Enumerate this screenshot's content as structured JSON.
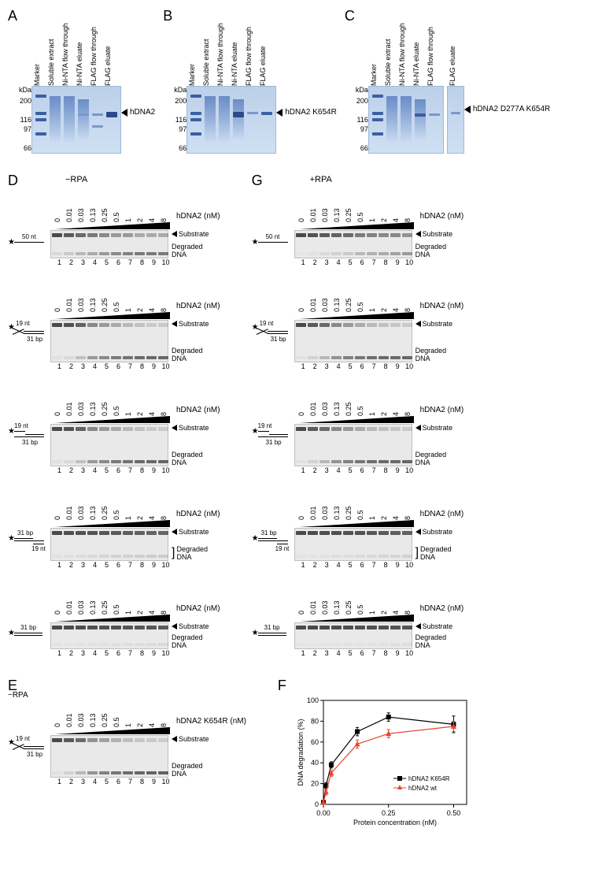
{
  "gel_lane_labels": [
    "Marker",
    "Soluble extract",
    "Ni-NTA flow through",
    "Ni-NTA eluate",
    "FLAG flow through",
    "FLAG eluate"
  ],
  "kda_label": "kDa",
  "kda_values": [
    "200",
    "116",
    "97",
    "66"
  ],
  "panelA": {
    "label": "A",
    "side": "hDNA2"
  },
  "panelB": {
    "label": "B",
    "side": "hDNA2 K654R"
  },
  "panelC": {
    "label": "C",
    "side": "hDNA2 D277A K654R"
  },
  "concentrations": [
    "0",
    "0.01",
    "0.03",
    "0.13",
    "0.25",
    "0.5",
    "1",
    "2",
    "4",
    "8"
  ],
  "lane_numbers": [
    "1",
    "2",
    "3",
    "4",
    "5",
    "6",
    "7",
    "8",
    "9",
    "10"
  ],
  "hdna2_label": "hDNA2 (nM)",
  "k654r_label": "hDNA2 K654R (nM)",
  "substrate_label": "Substrate",
  "degraded_label": "Degraded DNA",
  "colD": {
    "label": "D",
    "title": "−RPA"
  },
  "colG": {
    "label": "G",
    "title": "+RPA"
  },
  "panelE": {
    "label": "E",
    "title": "−RPA"
  },
  "panelF": {
    "label": "F",
    "xlabel": "Protein concentration (nM)",
    "ylabel": "DNA degradation (%)",
    "xlim": [
      0,
      0.55
    ],
    "ylim": [
      0,
      100
    ],
    "xticks": [
      0.0,
      0.25,
      0.5
    ],
    "yticks": [
      0,
      20,
      40,
      60,
      80,
      100
    ],
    "series": [
      {
        "name": "hDNA2 K654R",
        "color": "#000000",
        "marker": "square",
        "x": [
          0,
          0.01,
          0.03,
          0.13,
          0.25,
          0.5
        ],
        "y": [
          2,
          18,
          38,
          70,
          84,
          77
        ],
        "yerr": [
          2,
          3,
          3,
          4,
          4,
          8
        ]
      },
      {
        "name": "hDNA2 wt",
        "color": "#e8452f",
        "marker": "triangle",
        "x": [
          0,
          0.01,
          0.03,
          0.13,
          0.25,
          0.5
        ],
        "y": [
          2,
          12,
          30,
          58,
          68,
          75
        ],
        "yerr": [
          2,
          3,
          3,
          4,
          4,
          5
        ]
      }
    ],
    "bg": "#ffffff",
    "axis_color": "#000000",
    "fontsize": 9
  },
  "substrates": {
    "ss50": {
      "txt": "50 nt"
    },
    "y19_31": {
      "t1": "19 nt",
      "t2": "31 bp"
    },
    "ov5_19_31": {
      "t1": "19 nt",
      "t2": "31 bp"
    },
    "ov3_31_19": {
      "t1": "31 bp",
      "t2": "19 nt"
    },
    "ds31": {
      "txt": "31 bp"
    }
  },
  "assay_gel_bg": "#e9e9e9",
  "gel_blue_bg": "#bcd0ea",
  "D_panels": [
    {
      "sub": "ss50",
      "height": 36,
      "top_fade": [
        1.0,
        0.9,
        0.8,
        0.7,
        0.6,
        0.5,
        0.5,
        0.4,
        0.4,
        0.4
      ],
      "bot": [
        0.1,
        0.2,
        0.3,
        0.4,
        0.5,
        0.6,
        0.65,
        0.7,
        0.7,
        0.7
      ]
    },
    {
      "sub": "y19_31",
      "height": 54,
      "top_fade": [
        1.0,
        0.95,
        0.85,
        0.6,
        0.5,
        0.4,
        0.3,
        0.25,
        0.2,
        0.2
      ],
      "bot": [
        0.05,
        0.1,
        0.25,
        0.5,
        0.6,
        0.7,
        0.75,
        0.8,
        0.8,
        0.82
      ]
    },
    {
      "sub": "ov5_19_31",
      "height": 54,
      "top_fade": [
        1.0,
        0.95,
        0.85,
        0.6,
        0.5,
        0.4,
        0.3,
        0.25,
        0.2,
        0.2
      ],
      "bot": [
        0.05,
        0.1,
        0.25,
        0.5,
        0.6,
        0.7,
        0.75,
        0.8,
        0.8,
        0.82
      ]
    },
    {
      "sub": "ov3_31_19",
      "height": 42,
      "top_fade": [
        1.0,
        0.98,
        0.96,
        0.94,
        0.92,
        0.9,
        0.88,
        0.86,
        0.84,
        0.82
      ],
      "bot": [
        0.05,
        0.06,
        0.08,
        0.1,
        0.12,
        0.14,
        0.15,
        0.16,
        0.17,
        0.18
      ],
      "bracket": true
    },
    {
      "sub": "ds31",
      "height": 34,
      "top_fade": [
        1.0,
        1.0,
        0.98,
        0.97,
        0.96,
        0.95,
        0.94,
        0.93,
        0.92,
        0.9
      ],
      "bot": [
        0.03,
        0.03,
        0.04,
        0.05,
        0.05,
        0.06,
        0.07,
        0.08,
        0.08,
        0.1
      ]
    }
  ],
  "G_panels": [
    {
      "sub": "ss50",
      "height": 36,
      "top_fade": [
        1.0,
        0.95,
        0.9,
        0.85,
        0.8,
        0.7,
        0.65,
        0.6,
        0.6,
        0.55
      ],
      "bot": [
        0.02,
        0.05,
        0.1,
        0.15,
        0.2,
        0.3,
        0.35,
        0.4,
        0.45,
        0.5
      ]
    },
    {
      "sub": "y19_31",
      "height": 54,
      "top_fade": [
        1.0,
        0.9,
        0.8,
        0.6,
        0.5,
        0.4,
        0.3,
        0.25,
        0.22,
        0.2
      ],
      "bot": [
        0.05,
        0.15,
        0.3,
        0.55,
        0.65,
        0.72,
        0.78,
        0.8,
        0.8,
        0.82
      ]
    },
    {
      "sub": "ov5_19_31",
      "height": 54,
      "top_fade": [
        1.0,
        0.9,
        0.8,
        0.6,
        0.5,
        0.4,
        0.3,
        0.25,
        0.22,
        0.2
      ],
      "bot": [
        0.05,
        0.15,
        0.3,
        0.55,
        0.65,
        0.72,
        0.78,
        0.8,
        0.8,
        0.82
      ]
    },
    {
      "sub": "ov3_31_19",
      "height": 42,
      "top_fade": [
        1.0,
        0.99,
        0.98,
        0.97,
        0.96,
        0.95,
        0.93,
        0.9,
        0.88,
        0.85
      ],
      "bot": [
        0.03,
        0.04,
        0.05,
        0.06,
        0.07,
        0.08,
        0.1,
        0.12,
        0.13,
        0.15
      ],
      "bracket": true
    },
    {
      "sub": "ds31",
      "height": 34,
      "top_fade": [
        1.0,
        1.0,
        0.99,
        0.98,
        0.98,
        0.97,
        0.96,
        0.95,
        0.94,
        0.93
      ],
      "bot": [
        0.02,
        0.02,
        0.03,
        0.03,
        0.04,
        0.04,
        0.05,
        0.05,
        0.06,
        0.07
      ]
    }
  ],
  "E_panel": {
    "sub": "y19_31",
    "height": 54,
    "top_fade": [
      1.0,
      0.9,
      0.8,
      0.55,
      0.45,
      0.35,
      0.28,
      0.22,
      0.2,
      0.18
    ],
    "bot": [
      0.05,
      0.15,
      0.3,
      0.55,
      0.65,
      0.72,
      0.78,
      0.82,
      0.84,
      0.86
    ]
  }
}
